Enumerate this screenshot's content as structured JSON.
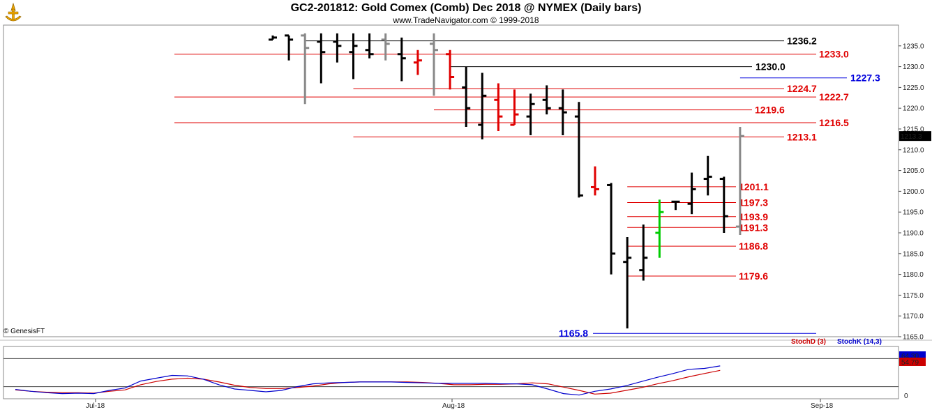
{
  "header": {
    "title": "GC2-201812:  Gold Comex (Comb) Dec 2018 @ NYMEX  (Daily bars)",
    "subtitle": "www.TradeNavigator.com © 1999-2018",
    "copyright": "© GenesisFT"
  },
  "chart_data": [
    {
      "type": "ohlc",
      "ylim": [
        1165,
        1240
      ],
      "y_ticks": [
        "1165.0",
        "1170.0",
        "1175.0",
        "1180.0",
        "1185.0",
        "1190.0",
        "1195.0",
        "1200.0",
        "1205.0",
        "1210.0",
        "1215.0",
        "1220.0",
        "1225.0",
        "1230.0",
        "1235.0"
      ],
      "x_tick_labels": [
        "Jul-18",
        "Aug-18",
        "Sep-18"
      ],
      "last_price_label": "1213.3",
      "bars": [
        {
          "o": 1236.5,
          "h": 1237.5,
          "l": 1236.5,
          "c": 1237.0,
          "color": "#000000"
        },
        {
          "o": 1237.5,
          "h": 1237.5,
          "l": 1231.5,
          "c": 1236.5,
          "color": "#000000"
        },
        {
          "o": 1237.5,
          "h": 1238.0,
          "l": 1221.0,
          "c": 1234.5,
          "color": "#888888"
        },
        {
          "o": 1236.0,
          "h": 1238.0,
          "l": 1226.0,
          "c": 1233.5,
          "color": "#000000"
        },
        {
          "o": 1236.0,
          "h": 1238.0,
          "l": 1231.0,
          "c": 1235.0,
          "color": "#000000"
        },
        {
          "o": 1233.5,
          "h": 1238.0,
          "l": 1227.0,
          "c": 1235.0,
          "color": "#000000"
        },
        {
          "o": 1234.0,
          "h": 1238.0,
          "l": 1232.0,
          "c": 1233.0,
          "color": "#000000"
        },
        {
          "o": 1236.5,
          "h": 1238.0,
          "l": 1231.5,
          "c": 1235.5,
          "color": "#888888"
        },
        {
          "o": 1233.0,
          "h": 1237.0,
          "l": 1226.5,
          "c": 1232.0,
          "color": "#000000"
        },
        {
          "o": 1231.0,
          "h": 1234.0,
          "l": 1228.0,
          "c": 1231.5,
          "color": "#e00000"
        },
        {
          "o": 1235.5,
          "h": 1238.0,
          "l": 1223.0,
          "c": 1234.0,
          "color": "#888888"
        },
        {
          "o": 1233.0,
          "h": 1234.0,
          "l": 1224.5,
          "c": 1227.5,
          "color": "#e00000"
        },
        {
          "o": 1225.0,
          "h": 1230.0,
          "l": 1215.5,
          "c": 1220.0,
          "color": "#000000"
        },
        {
          "o": 1216.0,
          "h": 1228.5,
          "l": 1212.5,
          "c": 1223.0,
          "color": "#000000"
        },
        {
          "o": 1222.0,
          "h": 1226.0,
          "l": 1214.5,
          "c": 1218.0,
          "color": "#e00000"
        },
        {
          "o": 1216.0,
          "h": 1224.5,
          "l": 1216.0,
          "c": 1218.5,
          "color": "#e00000"
        },
        {
          "o": 1218.0,
          "h": 1223.5,
          "l": 1213.5,
          "c": 1221.0,
          "color": "#000000"
        },
        {
          "o": 1222.0,
          "h": 1225.5,
          "l": 1218.5,
          "c": 1220.0,
          "color": "#000000"
        },
        {
          "o": 1220.0,
          "h": 1224.5,
          "l": 1213.5,
          "c": 1219.0,
          "color": "#000000"
        },
        {
          "o": 1218.0,
          "h": 1221.5,
          "l": 1198.5,
          "c": 1199.0,
          "color": "#000000"
        },
        {
          "o": 1201.0,
          "h": 1206.0,
          "l": 1199.0,
          "c": 1200.5,
          "color": "#e00000"
        },
        {
          "o": 1201.5,
          "h": 1202.0,
          "l": 1180.0,
          "c": 1185.0,
          "color": "#000000"
        },
        {
          "o": 1183.0,
          "h": 1189.0,
          "l": 1167.0,
          "c": 1184.0,
          "color": "#000000"
        },
        {
          "o": 1181.0,
          "h": 1192.0,
          "l": 1178.5,
          "c": 1184.0,
          "color": "#000000"
        },
        {
          "o": 1190.0,
          "h": 1198.0,
          "l": 1184.0,
          "c": 1195.0,
          "color": "#00cc00"
        },
        {
          "o": 1197.5,
          "h": 1197.5,
          "l": 1195.5,
          "c": 1197.5,
          "color": "#000000"
        },
        {
          "o": 1197.0,
          "h": 1204.5,
          "l": 1194.5,
          "c": 1200.5,
          "color": "#000000"
        },
        {
          "o": 1203.0,
          "h": 1208.5,
          "l": 1199.0,
          "c": 1203.5,
          "color": "#000000"
        },
        {
          "o": 1203.0,
          "h": 1203.5,
          "l": 1190.0,
          "c": 1194.0,
          "color": "#000000"
        },
        {
          "o": 1191.5,
          "h": 1215.5,
          "l": 1189.5,
          "c": 1213.3,
          "color": "#888888"
        }
      ],
      "levels": [
        {
          "value": 1236.2,
          "label": "1236.2",
          "color": "#000000",
          "start_bar": 2
        },
        {
          "value": 1233.0,
          "label": "1233.0",
          "color": "#e00000",
          "start_bar": -5
        },
        {
          "value": 1230.0,
          "label": "1230.0",
          "color": "#000000",
          "start_bar": 11
        },
        {
          "value": 1227.3,
          "label": "1227.3",
          "color": "#0000dd",
          "start_bar": 29
        },
        {
          "value": 1224.7,
          "label": "1224.7",
          "color": "#e00000",
          "start_bar": 5
        },
        {
          "value": 1222.7,
          "label": "1222.7",
          "color": "#e00000",
          "start_bar": -5
        },
        {
          "value": 1219.6,
          "label": "1219.6",
          "color": "#e00000",
          "start_bar": 10
        },
        {
          "value": 1216.5,
          "label": "1216.5",
          "color": "#e00000",
          "start_bar": -5
        },
        {
          "value": 1213.1,
          "label": "1213.1",
          "color": "#e00000",
          "start_bar": 5
        },
        {
          "value": 1201.1,
          "label": "1201.1",
          "color": "#e00000",
          "start_bar": 22
        },
        {
          "value": 1197.3,
          "label": "1197.3",
          "color": "#e00000",
          "start_bar": 22
        },
        {
          "value": 1193.9,
          "label": "1193.9",
          "color": "#e00000",
          "start_bar": 22
        },
        {
          "value": 1191.3,
          "label": "1191.3",
          "color": "#e00000",
          "start_bar": 22
        },
        {
          "value": 1186.8,
          "label": "1186.8",
          "color": "#e00000",
          "start_bar": 22
        },
        {
          "value": 1179.6,
          "label": "1179.6",
          "color": "#e00000",
          "start_bar": 22
        },
        {
          "value": 1165.8,
          "label": "1165.8",
          "color": "#0000dd",
          "start_bar": 21
        }
      ]
    },
    {
      "type": "line",
      "ylim": [
        0,
        100
      ],
      "y_tick_labels": [
        "0"
      ],
      "legend": [
        "StochD (3)",
        "StochK (14,3)"
      ],
      "series": [
        {
          "name": "StochD (3)",
          "color": "#cc0000",
          "values": [
            13,
            10,
            8,
            7,
            7,
            6,
            10,
            13,
            24,
            31,
            36,
            38,
            36,
            30,
            23,
            18,
            16,
            16,
            18,
            21,
            26,
            29,
            30,
            30,
            30,
            30,
            29,
            27,
            24,
            24,
            25,
            25,
            26,
            28,
            26,
            19,
            12,
            4,
            6,
            12,
            18,
            26,
            33,
            41,
            48,
            54.79
          ]
        },
        {
          "name": "StochK (14,3)",
          "color": "#0000cc",
          "values": [
            14,
            10,
            7,
            5,
            6,
            5,
            12,
            17,
            32,
            38,
            44,
            43,
            36,
            24,
            15,
            12,
            9,
            12,
            20,
            26,
            28,
            29,
            30,
            30,
            30,
            29,
            28,
            27,
            27,
            27,
            27,
            26,
            26,
            24,
            15,
            5,
            2,
            10,
            15,
            22,
            31,
            40,
            48,
            57,
            59,
            64.3
          ]
        }
      ],
      "last_d_label": "54.79",
      "last_k_label": "64.30"
    }
  ]
}
